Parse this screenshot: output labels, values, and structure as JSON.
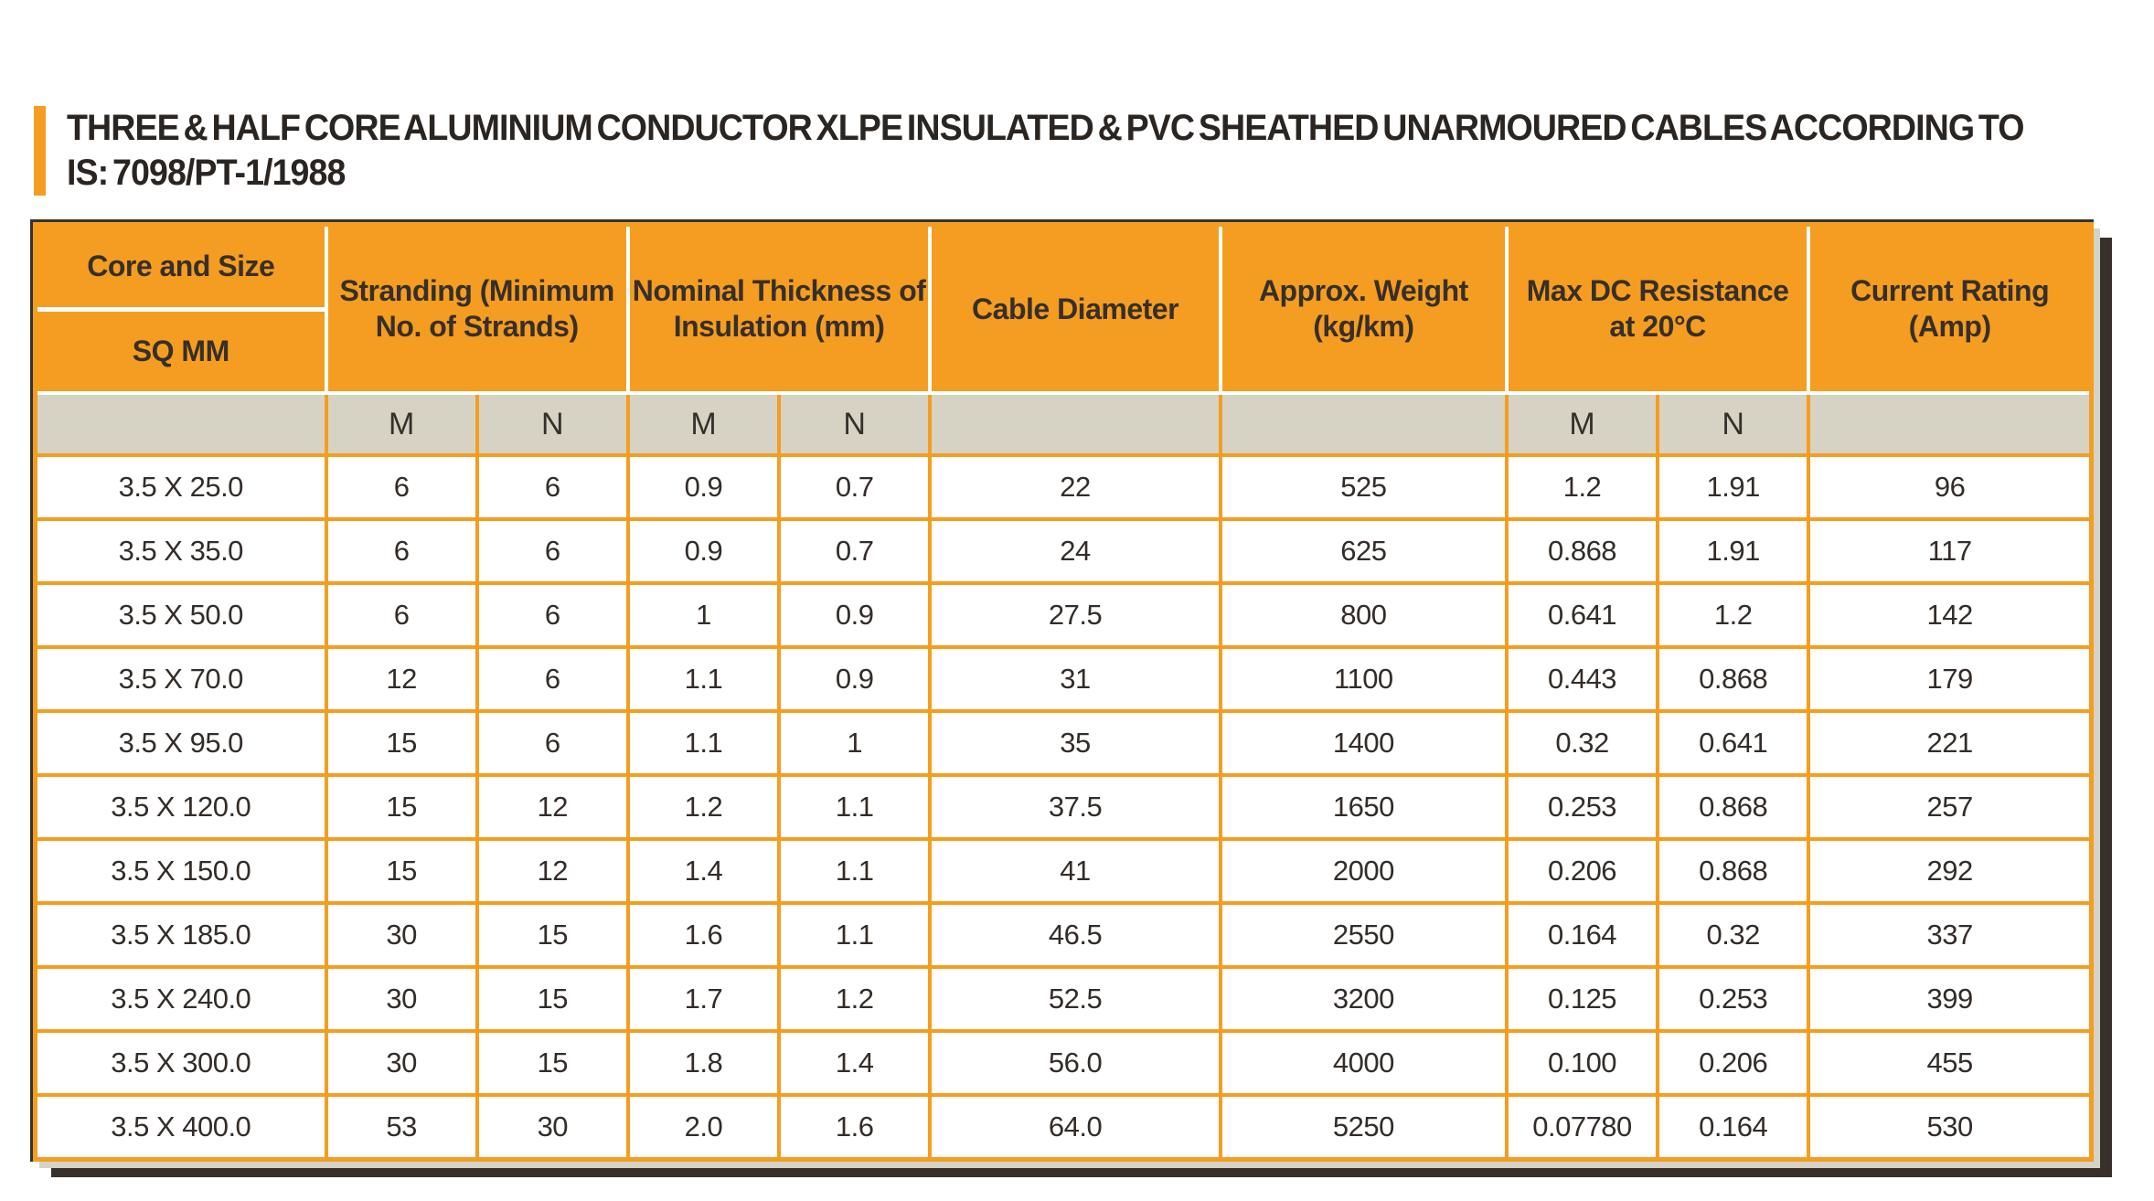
{
  "title": {
    "line1": "THREE & HALF CORE ALUMINIUM CONDUCTOR XLPE INSULATED & PVC SHEATHED UNARMOURED CABLES ACCORDING TO",
    "line2": "IS: 7098/PT-1/1988",
    "accent_color": "#F59D20"
  },
  "table": {
    "colors": {
      "header_bg": "#F59D20",
      "subheader_bg": "#D6D3C5",
      "border": "#F59D20",
      "shadow_dark": "#38312B",
      "shadow_light": "#D5D3C5",
      "text": "#362F2B"
    },
    "header": {
      "core_size": "Core and Size",
      "sq_mm": "SQ MM",
      "stranding_line1": "Stranding (Minimum",
      "stranding_line2": "No. of Strands)",
      "insulation_line1": "Nominal Thickness of",
      "insulation_line2": "Insulation (mm)",
      "diameter": "Cable Diameter",
      "weight_line1": "Approx. Weight",
      "weight_line2": "(kg/km)",
      "resistance_line1": "Max DC Resistance",
      "resistance_line2": "at 20°C",
      "current_line1": "Current Rating",
      "current_line2": "(Amp)"
    },
    "subheader": [
      "",
      "M",
      "N",
      "M",
      "N",
      "",
      "",
      "M",
      "N",
      ""
    ],
    "rows": [
      [
        "3.5 X 25.0",
        "6",
        "6",
        "0.9",
        "0.7",
        "22",
        "525",
        "1.2",
        "1.91",
        "96"
      ],
      [
        "3.5 X 35.0",
        "6",
        "6",
        "0.9",
        "0.7",
        "24",
        "625",
        "0.868",
        "1.91",
        "117"
      ],
      [
        "3.5 X 50.0",
        "6",
        "6",
        "1",
        "0.9",
        "27.5",
        "800",
        "0.641",
        "1.2",
        "142"
      ],
      [
        "3.5 X 70.0",
        "12",
        "6",
        "1.1",
        "0.9",
        "31",
        "1100",
        "0.443",
        "0.868",
        "179"
      ],
      [
        "3.5 X 95.0",
        "15",
        "6",
        "1.1",
        "1",
        "35",
        "1400",
        "0.32",
        "0.641",
        "221"
      ],
      [
        "3.5 X 120.0",
        "15",
        "12",
        "1.2",
        "1.1",
        "37.5",
        "1650",
        "0.253",
        "0.868",
        "257"
      ],
      [
        "3.5 X 150.0",
        "15",
        "12",
        "1.4",
        "1.1",
        "41",
        "2000",
        "0.206",
        "0.868",
        "292"
      ],
      [
        "3.5 X 185.0",
        "30",
        "15",
        "1.6",
        "1.1",
        "46.5",
        "2550",
        "0.164",
        "0.32",
        "337"
      ],
      [
        "3.5 X 240.0",
        "30",
        "15",
        "1.7",
        "1.2",
        "52.5",
        "3200",
        "0.125",
        "0.253",
        "399"
      ],
      [
        "3.5 X 300.0",
        "30",
        "15",
        "1.8",
        "1.4",
        "56.0",
        "4000",
        "0.100",
        "0.206",
        "455"
      ],
      [
        "3.5 X 400.0",
        "53",
        "30",
        "2.0",
        "1.6",
        "64.0",
        "5250",
        "0.07780",
        "0.164",
        "530"
      ]
    ]
  }
}
